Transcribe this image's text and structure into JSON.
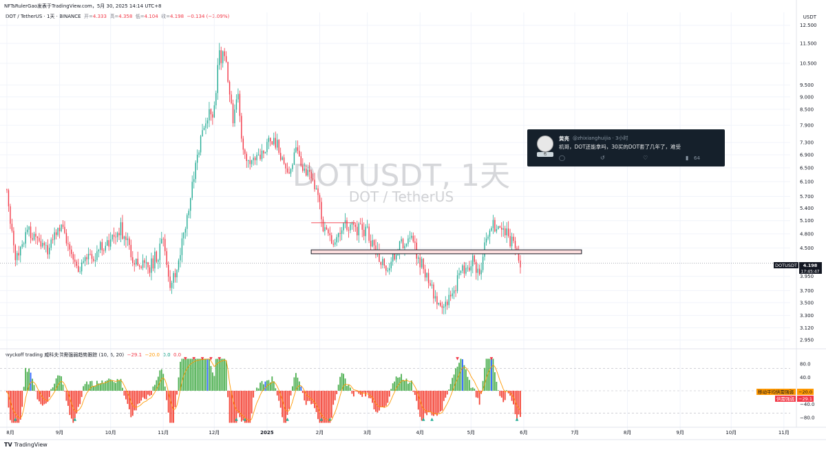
{
  "header": {
    "published_line": "NFTsRulerGao发表于TradingView.com，5月 30, 2025 14:14 UTC+8",
    "symbol_title": "DOT / TetherUS · 1天 · BINANCE",
    "open_label": "开=",
    "open": "4.333",
    "high_label": "高=",
    "high": "4.358",
    "low_label": "低=",
    "low": "4.104",
    "close_label": "收=",
    "close": "4.198",
    "change": "−0.134 (−3.09%)"
  },
  "currency_label": "USDT",
  "watermark": {
    "title": "DOTUSDT, 1天",
    "subtitle": "DOT / TetherUS"
  },
  "last_price": {
    "symbol": "DOTUSDT",
    "value": "4.198",
    "countdown": "17:45:47"
  },
  "indicator": {
    "title": "wyckoff trading 威科夫供需强弱趋势跟踪 (10, 6, 20)",
    "v1": "−29.1",
    "v2": "−20.0",
    "v3": "0.0",
    "v4": "0.0",
    "ma_label": "移动平均供需强弱",
    "ma_value": "−20.0",
    "sd_label": "供需强弱",
    "sd_value": "−29.1"
  },
  "tweet": {
    "name": "黄亮",
    "handle": "@zhixianghuijia · 3小时",
    "body": "机哥，DOT还能拿吗，30买的DOT套了几年了，难受",
    "views": "64",
    "avatar_tag": "名"
  },
  "footer": {
    "brand": "TradingView"
  },
  "colors": {
    "up": "#22ab94",
    "down": "#f23645",
    "hist_up": "#4caf50",
    "hist_down": "#f44336",
    "hist_blue": "#2962ff",
    "ma_line": "#ff9800",
    "zone_border": "#131722",
    "zone_fill": "#fcdede"
  },
  "chart_data": {
    "type": "candlestick",
    "scale": "log",
    "price_axis_labels": [
      "12.500",
      "11.500",
      "10.500",
      "9.500",
      "9.000",
      "8.500",
      "7.900",
      "7.300",
      "6.900",
      "6.500",
      "6.100",
      "5.700",
      "5.400",
      "5.100",
      "4.800",
      "4.500",
      "3.950",
      "3.700",
      "3.500",
      "3.300",
      "3.120",
      "2.950"
    ],
    "indicator_axis_labels": [
      "80.0",
      "40.0",
      "0.0",
      "−40.0",
      "−80.0"
    ],
    "time_axis_labels": [
      "8月",
      "9月",
      "10月",
      "11月",
      "12月",
      "2025",
      "2月",
      "3月",
      "4月",
      "5月",
      "6月",
      "7月",
      "8月",
      "9月",
      "10月",
      "11月"
    ],
    "price_path": [
      [
        "2024-08-01",
        5.9
      ],
      [
        "2024-08-06",
        4.3
      ],
      [
        "2024-08-14",
        4.9
      ],
      [
        "2024-08-24",
        4.45
      ],
      [
        "2024-09-02",
        4.9
      ],
      [
        "2024-09-10",
        4.1
      ],
      [
        "2024-09-22",
        4.4
      ],
      [
        "2024-10-01",
        4.7
      ],
      [
        "2024-10-07",
        4.9
      ],
      [
        "2024-10-14",
        4.3
      ],
      [
        "2024-10-24",
        4.1
      ],
      [
        "2024-11-01",
        4.6
      ],
      [
        "2024-11-05",
        3.8
      ],
      [
        "2024-11-10",
        4.2
      ],
      [
        "2024-11-18",
        6.0
      ],
      [
        "2024-11-25",
        8.0
      ],
      [
        "2024-12-01",
        8.5
      ],
      [
        "2024-12-04",
        11.0
      ],
      [
        "2024-12-08",
        10.5
      ],
      [
        "2024-12-12",
        8.1
      ],
      [
        "2024-12-15",
        8.9
      ],
      [
        "2024-12-18",
        7.0
      ],
      [
        "2024-12-22",
        6.8
      ],
      [
        "2024-12-28",
        7.0
      ],
      [
        "2025-01-05",
        7.5
      ],
      [
        "2025-01-08",
        7.0
      ],
      [
        "2025-01-12",
        6.3
      ],
      [
        "2025-01-18",
        6.9
      ],
      [
        "2025-01-22",
        6.6
      ],
      [
        "2025-01-28",
        6.3
      ],
      [
        "2025-02-03",
        5.0
      ],
      [
        "2025-02-08",
        4.6
      ],
      [
        "2025-02-14",
        5.0
      ],
      [
        "2025-02-22",
        4.9
      ],
      [
        "2025-03-01",
        4.8
      ],
      [
        "2025-03-06",
        4.4
      ],
      [
        "2025-03-12",
        4.1
      ],
      [
        "2025-03-20",
        4.5
      ],
      [
        "2025-03-27",
        4.7
      ],
      [
        "2025-04-01",
        4.2
      ],
      [
        "2025-04-06",
        3.9
      ],
      [
        "2025-04-09",
        3.6
      ],
      [
        "2025-04-14",
        3.4
      ],
      [
        "2025-04-20",
        3.6
      ],
      [
        "2025-04-25",
        4.1
      ],
      [
        "2025-05-02",
        4.2
      ],
      [
        "2025-05-06",
        3.95
      ],
      [
        "2025-05-10",
        4.8
      ],
      [
        "2025-05-14",
        5.1
      ],
      [
        "2025-05-18",
        4.8
      ],
      [
        "2025-05-22",
        4.9
      ],
      [
        "2025-05-26",
        4.5
      ],
      [
        "2025-05-30",
        4.198
      ]
    ],
    "resistance_zone": {
      "low": 4.38,
      "high": 4.46,
      "from": "2025-01-27",
      "to": "2025-07-05"
    },
    "thin_mark": {
      "price": 5.05,
      "from": "2025-01-27",
      "to": "2025-02-22"
    },
    "indicator": {
      "hline_top": 66,
      "hline_bottom": -66,
      "range": [
        -100,
        100
      ]
    }
  }
}
